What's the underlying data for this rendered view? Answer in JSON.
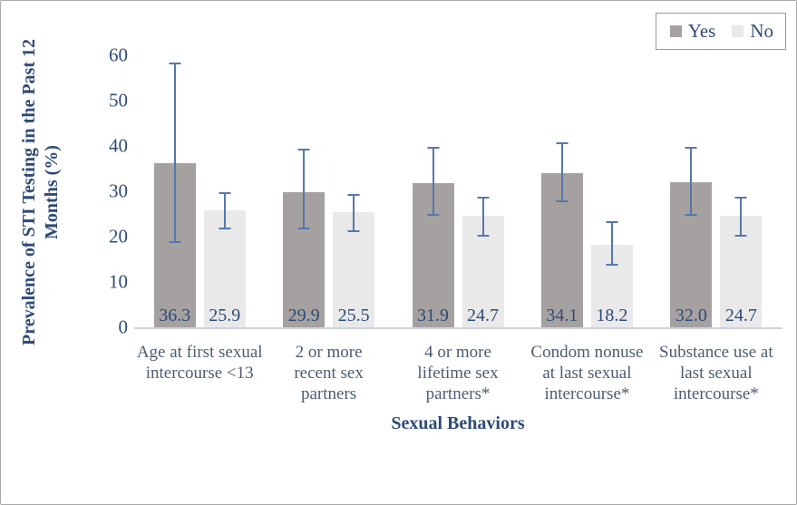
{
  "figure": {
    "background": "#ffffff",
    "border_color": "#a9a9a9"
  },
  "chart_data": {
    "type": "bar",
    "title": "",
    "xlabel": "Sexual Behaviors",
    "ylabel": "Prevalence of STI Testing in the Past 12\nMonths (%)",
    "ylim": [
      0,
      60
    ],
    "yticks": [
      0,
      10,
      20,
      30,
      40,
      50,
      60
    ],
    "grid": false,
    "legend_position": "top-right",
    "bar_value_labels_shown": true,
    "error_bars": true,
    "categories": [
      "Age at first sexual\nintercourse <13",
      "2 or more\nrecent sex\npartners",
      "4 or more\nlifetime sex\npartners*",
      "Condom nonuse\nat last sexual\nintercourse*",
      "Substance use at\nlast sexual\nintercourse*"
    ],
    "series": [
      {
        "name": "Yes",
        "color": "#a5a1a0",
        "values": [
          36.3,
          29.9,
          31.9,
          34.1,
          32.0
        ],
        "ci_low": [
          19.0,
          22.0,
          25.0,
          28.0,
          25.0
        ],
        "ci_high": [
          58.0,
          39.0,
          39.5,
          40.5,
          39.5
        ]
      },
      {
        "name": "No",
        "color": "#e9e9ea",
        "values": [
          25.9,
          25.5,
          24.7,
          18.2,
          24.7
        ],
        "ci_low": [
          22.0,
          21.5,
          20.5,
          14.0,
          20.5
        ],
        "ci_high": [
          29.5,
          29.0,
          28.5,
          23.0,
          28.5
        ]
      }
    ],
    "error_bar_color": "#5677ab",
    "value_text_color": "#2e4b76",
    "category_text_color": "#4d5c73",
    "axis_line_color": "#ccd2da"
  }
}
